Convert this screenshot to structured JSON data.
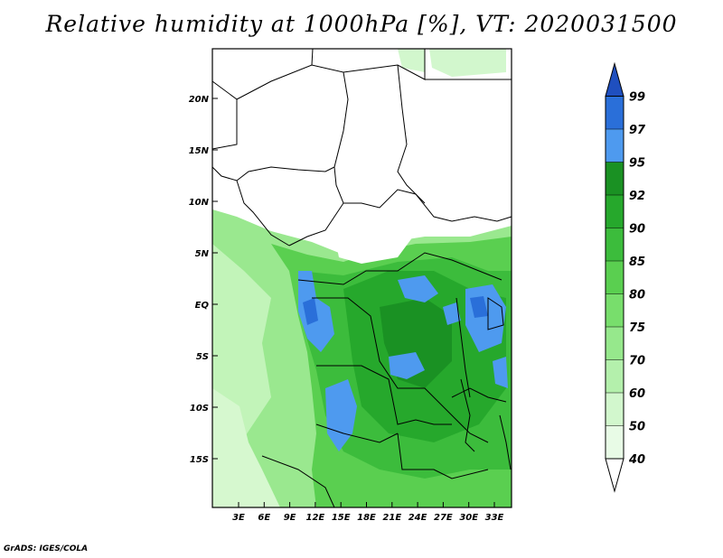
{
  "title": "Relative humidity at 1000hPa [%], VT: 2020031500",
  "credit": "GrADS: IGES/COLA",
  "map": {
    "lat_labels": [
      "20N",
      "15N",
      "10N",
      "5N",
      "EQ",
      "5S",
      "10S",
      "15S"
    ],
    "lon_labels": [
      "3E",
      "6E",
      "9E",
      "12E",
      "15E",
      "18E",
      "21E",
      "24E",
      "27E",
      "30E",
      "33E"
    ],
    "lon_range": [
      0,
      35
    ],
    "lat_range": [
      -20,
      25
    ]
  },
  "colorbar": {
    "labels": [
      "40",
      "50",
      "60",
      "70",
      "75",
      "80",
      "85",
      "90",
      "92",
      "95",
      "97",
      "99"
    ],
    "colors": [
      "#ffffff",
      "#e8fbe6",
      "#d2f7cd",
      "#b4f0ac",
      "#96e88c",
      "#78de6c",
      "#5acf50",
      "#3cbc3c",
      "#26a82c",
      "#1a9123",
      "#4e9aef",
      "#2a6fd9",
      "#1f4fbf"
    ]
  }
}
